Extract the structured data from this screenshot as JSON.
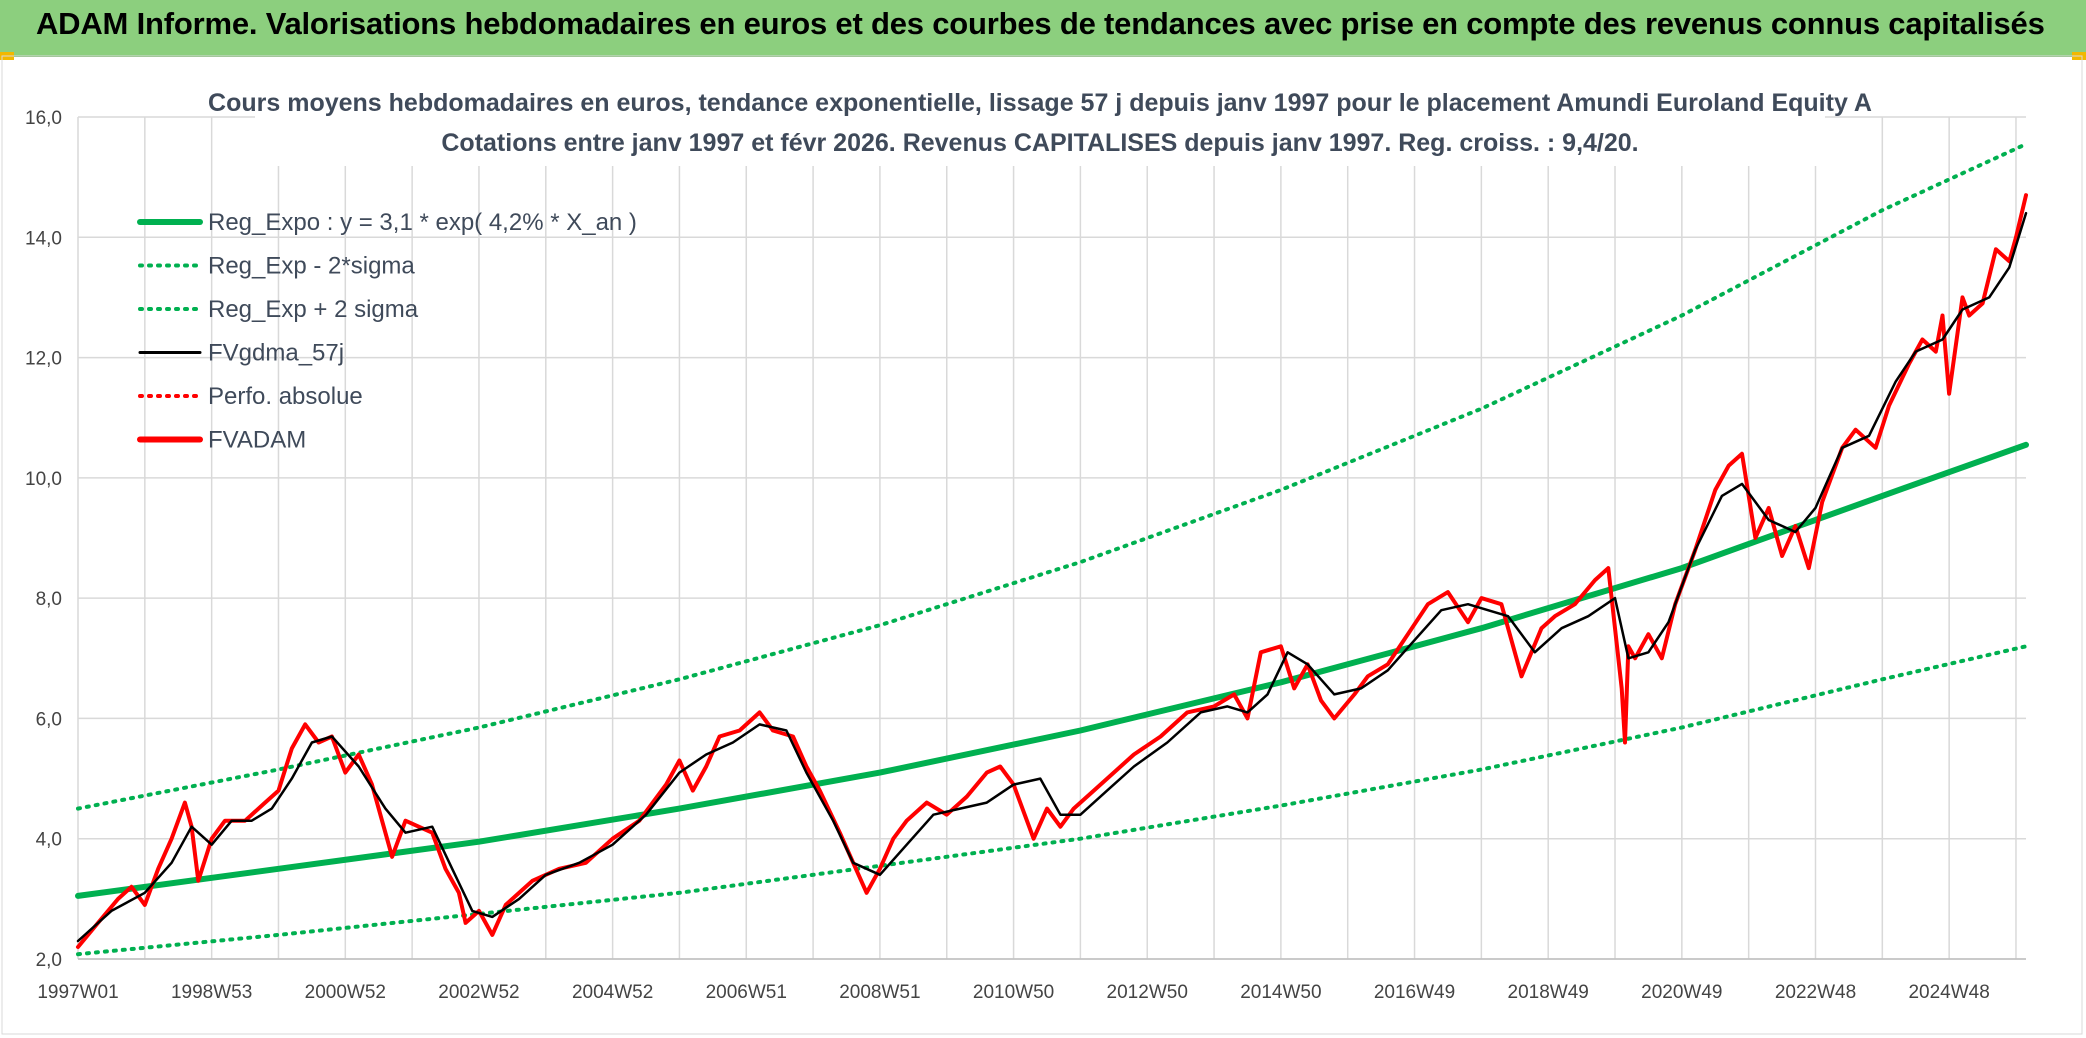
{
  "banner": {
    "title": "ADAM Informe. Valorisations hebdomadaires en euros et des courbes de tendances avec prise en compte des revenus connus capitalisés",
    "bg_color": "#8ccf7e"
  },
  "chart_data": {
    "type": "line",
    "title_line1": "Cours moyens hebdomadaires en euros, tendance exponentielle, lissage 57 j depuis janv 1997 pour le placement Amundi Euroland Equity A",
    "title_line2": "Cotations entre janv 1997 et févr 2026. Revenus CAPITALISES depuis janv 1997. Reg. croiss. : 9,4/20.",
    "x_tick_labels": [
      "1997W01",
      "1998W53",
      "2000W52",
      "2002W52",
      "2004W52",
      "2006W51",
      "2008W51",
      "2010W50",
      "2012W50",
      "2014W50",
      "2016W49",
      "2018W49",
      "2020W49",
      "2022W48",
      "2024W48"
    ],
    "x_range": [
      1997.0,
      2026.15
    ],
    "y_tick_labels": [
      "2,0",
      "4,0",
      "6,0",
      "8,0",
      "10,0",
      "12,0",
      "14,0",
      "16,0"
    ],
    "y_ticks": [
      2,
      4,
      6,
      8,
      10,
      12,
      14,
      16
    ],
    "ylim": [
      2,
      16
    ],
    "grid": true,
    "legend_position": "top-left",
    "legend": [
      {
        "label": "Reg_Expo : y = 3,1 * exp( 4,2% *  X_an )",
        "color": "#00b050",
        "style": "solid-thick"
      },
      {
        "label": "Reg_Exp - 2*sigma",
        "color": "#00b050",
        "style": "dotted"
      },
      {
        "label": "Reg_Exp + 2 sigma",
        "color": "#00b050",
        "style": "dotted"
      },
      {
        "label": "FVgdma_57j",
        "color": "#000000",
        "style": "solid"
      },
      {
        "label": "Perfo. absolue",
        "color": "#ff0000",
        "style": "dotted"
      },
      {
        "label": "FVADAM",
        "color": "#ff0000",
        "style": "solid-thick"
      }
    ],
    "series": [
      {
        "name": "Reg_Expo : y = 3,1 * exp( 4,2% *  X_an )",
        "color": "#00b050",
        "x": [
          1997.0,
          2000.0,
          2003.0,
          2006.0,
          2009.0,
          2012.0,
          2015.0,
          2018.0,
          2021.0,
          2024.0,
          2026.15
        ],
        "values": [
          3.05,
          3.5,
          3.95,
          4.5,
          5.1,
          5.8,
          6.6,
          7.5,
          8.5,
          9.7,
          10.55
        ]
      },
      {
        "name": "Reg_Exp - 2*sigma",
        "color": "#00b050",
        "x": [
          1997.0,
          2000.0,
          2003.0,
          2006.0,
          2009.0,
          2012.0,
          2015.0,
          2018.0,
          2021.0,
          2024.0,
          2026.15
        ],
        "values": [
          2.08,
          2.4,
          2.75,
          3.1,
          3.55,
          4.0,
          4.55,
          5.15,
          5.85,
          6.65,
          7.2
        ]
      },
      {
        "name": "Reg_Exp + 2 sigma",
        "color": "#00b050",
        "x": [
          1997.0,
          2000.0,
          2003.0,
          2006.0,
          2009.0,
          2012.0,
          2015.0,
          2018.0,
          2021.0,
          2024.0,
          2026.15
        ],
        "values": [
          4.5,
          5.15,
          5.85,
          6.65,
          7.55,
          8.6,
          9.8,
          11.15,
          12.7,
          14.45,
          15.55
        ]
      },
      {
        "name": "FVgdma_57j",
        "color": "#000000",
        "x": [
          1997.0,
          1997.5,
          1998.0,
          1998.4,
          1998.7,
          1999.0,
          1999.3,
          1999.6,
          1999.9,
          2000.2,
          2000.5,
          2000.8,
          2001.2,
          2001.6,
          2001.9,
          2002.3,
          2002.6,
          2002.9,
          2003.2,
          2003.6,
          2004.0,
          2004.5,
          2005.0,
          2005.5,
          2006.0,
          2006.4,
          2006.8,
          2007.2,
          2007.6,
          2007.9,
          2008.3,
          2008.6,
          2009.0,
          2009.4,
          2009.8,
          2010.2,
          2010.6,
          2011.0,
          2011.4,
          2011.7,
          2012.0,
          2012.4,
          2012.8,
          2013.3,
          2013.8,
          2014.2,
          2014.5,
          2014.8,
          2015.1,
          2015.4,
          2015.8,
          2016.2,
          2016.6,
          2017.0,
          2017.4,
          2017.8,
          2018.1,
          2018.4,
          2018.8,
          2019.2,
          2019.6,
          2020.0,
          2020.2,
          2020.5,
          2020.8,
          2021.2,
          2021.6,
          2021.9,
          2022.3,
          2022.7,
          2023.0,
          2023.4,
          2023.8,
          2024.2,
          2024.5,
          2024.9,
          2025.2,
          2025.6,
          2025.9,
          2026.15
        ],
        "values": [
          2.3,
          2.8,
          3.1,
          3.6,
          4.2,
          3.9,
          4.3,
          4.3,
          4.5,
          5.0,
          5.6,
          5.7,
          5.2,
          4.5,
          4.1,
          4.2,
          3.5,
          2.8,
          2.7,
          3.0,
          3.4,
          3.6,
          3.9,
          4.4,
          5.1,
          5.4,
          5.6,
          5.9,
          5.8,
          5.1,
          4.3,
          3.6,
          3.4,
          3.9,
          4.4,
          4.5,
          4.6,
          4.9,
          5.0,
          4.4,
          4.4,
          4.8,
          5.2,
          5.6,
          6.1,
          6.2,
          6.1,
          6.4,
          7.1,
          6.9,
          6.4,
          6.5,
          6.8,
          7.3,
          7.8,
          7.9,
          7.8,
          7.7,
          7.1,
          7.5,
          7.7,
          8.0,
          7.0,
          7.1,
          7.6,
          8.8,
          9.7,
          9.9,
          9.3,
          9.1,
          9.5,
          10.5,
          10.7,
          11.6,
          12.1,
          12.3,
          12.8,
          13.0,
          13.5,
          14.4
        ]
      },
      {
        "name": "FVADAM",
        "color": "#ff0000",
        "x": [
          1997.0,
          1997.3,
          1997.6,
          1997.8,
          1998.0,
          1998.2,
          1998.4,
          1998.6,
          1998.7,
          1998.8,
          1999.0,
          1999.2,
          1999.5,
          1999.8,
          2000.0,
          2000.2,
          2000.4,
          2000.6,
          2000.8,
          2001.0,
          2001.2,
          2001.4,
          2001.6,
          2001.7,
          2001.9,
          2002.1,
          2002.3,
          2002.5,
          2002.7,
          2002.8,
          2003.0,
          2003.2,
          2003.4,
          2003.8,
          2004.2,
          2004.6,
          2005.0,
          2005.4,
          2005.8,
          2006.0,
          2006.2,
          2006.4,
          2006.6,
          2006.9,
          2007.2,
          2007.4,
          2007.7,
          2007.9,
          2008.1,
          2008.4,
          2008.6,
          2008.8,
          2009.0,
          2009.2,
          2009.4,
          2009.7,
          2010.0,
          2010.3,
          2010.6,
          2010.8,
          2011.0,
          2011.3,
          2011.5,
          2011.7,
          2011.9,
          2012.2,
          2012.5,
          2012.8,
          2013.2,
          2013.6,
          2014.0,
          2014.3,
          2014.5,
          2014.7,
          2015.0,
          2015.2,
          2015.4,
          2015.6,
          2015.8,
          2016.1,
          2016.3,
          2016.6,
          2016.9,
          2017.2,
          2017.5,
          2017.8,
          2018.0,
          2018.3,
          2018.6,
          2018.9,
          2019.1,
          2019.4,
          2019.7,
          2019.9,
          2020.1,
          2020.15,
          2020.2,
          2020.3,
          2020.5,
          2020.7,
          2020.9,
          2021.2,
          2021.5,
          2021.7,
          2021.9,
          2022.1,
          2022.3,
          2022.5,
          2022.7,
          2022.9,
          2023.1,
          2023.4,
          2023.6,
          2023.9,
          2024.1,
          2024.4,
          2024.6,
          2024.8,
          2024.9,
          2025.0,
          2025.2,
          2025.3,
          2025.5,
          2025.7,
          2025.9,
          2026.0,
          2026.15
        ],
        "values": [
          2.2,
          2.6,
          3.0,
          3.2,
          2.9,
          3.5,
          4.0,
          4.6,
          4.2,
          3.3,
          4.0,
          4.3,
          4.3,
          4.6,
          4.8,
          5.5,
          5.9,
          5.6,
          5.7,
          5.1,
          5.4,
          4.9,
          4.1,
          3.7,
          4.3,
          4.2,
          4.1,
          3.5,
          3.1,
          2.6,
          2.8,
          2.4,
          2.9,
          3.3,
          3.5,
          3.6,
          4.0,
          4.3,
          4.9,
          5.3,
          4.8,
          5.2,
          5.7,
          5.8,
          6.1,
          5.8,
          5.7,
          5.2,
          4.8,
          4.1,
          3.6,
          3.1,
          3.5,
          4.0,
          4.3,
          4.6,
          4.4,
          4.7,
          5.1,
          5.2,
          4.9,
          4.0,
          4.5,
          4.2,
          4.5,
          4.8,
          5.1,
          5.4,
          5.7,
          6.1,
          6.2,
          6.4,
          6.0,
          7.1,
          7.2,
          6.5,
          6.9,
          6.3,
          6.0,
          6.4,
          6.7,
          6.9,
          7.4,
          7.9,
          8.1,
          7.6,
          8.0,
          7.9,
          6.7,
          7.5,
          7.7,
          7.9,
          8.3,
          8.5,
          6.5,
          5.6,
          7.2,
          7.0,
          7.4,
          7.0,
          7.9,
          8.8,
          9.8,
          10.2,
          10.4,
          9.0,
          9.5,
          8.7,
          9.2,
          8.5,
          9.6,
          10.5,
          10.8,
          10.5,
          11.2,
          11.9,
          12.3,
          12.1,
          12.7,
          11.4,
          13.0,
          12.7,
          12.9,
          13.8,
          13.6,
          14.0,
          14.7
        ]
      }
    ]
  }
}
